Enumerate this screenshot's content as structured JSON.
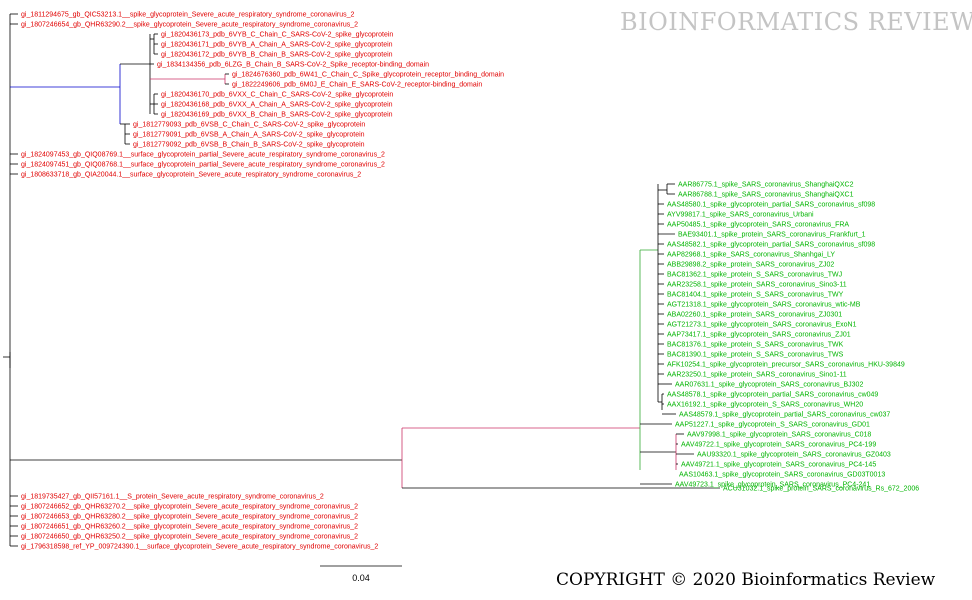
{
  "watermark": "BIOINFORMATICS REVIEW",
  "copyright": "COPYRIGHT © 2020 Bioinformatics Review",
  "scale_bar": {
    "label": "0.04",
    "value": 0.04
  },
  "colors": {
    "sars_cov_2": "#e00000",
    "sars": "#00b400",
    "outgroup": "#00b400",
    "branch_default": "#000000",
    "branch_blue": "#0000cc",
    "branch_pink": "#cc3366",
    "branch_green": "#33aa33"
  },
  "clades": {
    "sars_cov_2_top": [
      "gi_1811294675_gb_QIC53213.1__spike_glycoprotein_Severe_acute_respiratory_syndrome_coronavirus_2",
      "gi_1807246654_gb_QHR63290.2__spike_glycoprotein_Severe_acute_respiratory_syndrome_coronavirus_2",
      "gi_1820436173_pdb_6VYB_C_Chain_C_SARS-CoV-2_spike_glycoprotein",
      "gi_1820436171_pdb_6VYB_A_Chain_A_SARS-CoV-2_spike_glycoprotein",
      "gi_1820436172_pdb_6VYB_B_Chain_B_SARS-CoV-2_spike_glycoprotein",
      "gi_1834134356_pdb_6LZG_B_Chain_B_SARS-CoV-2_Spike_receptor-binding_domain",
      "gi_1824676360_pdb_6W41_C_Chain_C_Spike_glycoprotein_receptor_binding_domain",
      "gi_1822249606_pdb_6M0J_E_Chain_E_SARS-CoV-2_receptor-binding_domain",
      "gi_1820436170_pdb_6VXX_C_Chain_C_SARS-CoV-2_spike_glycoprotein",
      "gi_1820436168_pdb_6VXX_A_Chain_A_SARS-CoV-2_spike_glycoprotein",
      "gi_1820436169_pdb_6VXX_B_Chain_B_SARS-CoV-2_spike_glycoprotein",
      "gi_1812779093_pdb_6VSB_C_Chain_C_SARS-CoV-2_spike_glycoprotein",
      "gi_1812779091_pdb_6VSB_A_Chain_A_SARS-CoV-2_spike_glycoprotein",
      "gi_1812779092_pdb_6VSB_B_Chain_B_SARS-CoV-2_spike_glycoprotein",
      "gi_1824097453_gb_QIQ08769.1__surface_glycoprotein_partial_Severe_acute_respiratory_syndrome_coronavirus_2",
      "gi_1824097451_gb_QIQ08768.1__surface_glycoprotein_partial_Severe_acute_respiratory_syndrome_coronavirus_2",
      "gi_1808633718_gb_QIA20044.1__surface_glycoprotein_Severe_acute_respiratory_syndrome_coronavirus_2"
    ],
    "sars": [
      "AAR86775.1_spike_SARS_coronavirus_ShanghaiQXC2",
      "AAR86788.1_spike_SARS_coronavirus_ShanghaiQXC1",
      "AAS48580.1_spike_glycoprotein_partial_SARS_coronavirus_sf098",
      "AYV99817.1_spike_SARS_coronavirus_Urbani",
      "AAP50485.1_spike_glycoprotein_SARS_coronavirus_FRA",
      "BAE93401.1_spike_protein_SARS_coronavirus_Frankfurt_1",
      "AAS48582.1_spike_glycoprotein_partial_SARS_coronavirus_sf098",
      "AAP82968.1_spike_SARS_coronavirus_Shanhgai_LY",
      "ABB29898.2_spike_protein_SARS_coronavirus_ZJ02",
      "BAC81362.1_spike_protein_S_SARS_coronavirus_TWJ",
      "AAR23258.1_spike_protein_SARS_coronavirus_Sino3-11",
      "BAC81404.1_spike_protein_S_SARS_coronavirus_TWY",
      "AGT21318.1_spike_glycoprotein_SARS_coronavirus_wtic-MB",
      "ABA02260.1_spike_protein_SARS_coronavirus_ZJ0301",
      "AGT21273.1_spike_glycoprotein_SARS_coronavirus_ExoN1",
      "AAP73417.1_spike_glycoprotein_SARS_coronavirus_ZJ01",
      "BAC81376.1_spike_protein_S_SARS_coronavirus_TWK",
      "BAC81390.1_spike_protein_S_SARS_coronavirus_TWS",
      "AFK10254.1_spike_glycoprotein_precursor_SARS_coronavirus_HKU-39849",
      "AAR23250.1_spike_protein_SARS_coronavirus_Sino1-11",
      "AAR07631.1_spike_glycoprotein_SARS_coronavirus_BJ302",
      "AAS48578.1_spike_glycoprotein_partial_SARS_coronavirus_cw049",
      "AAX16192.1_spike_glycoprotein_S_SARS_coronavirus_WH20",
      "AAS48579.1_spike_glycoprotein_partial_SARS_coronavirus_cw037",
      "AAP51227.1_spike_glycoprotein_S_SARS_coronavirus_GD01",
      "AAV97998.1_spike_glycoprotein_SARS_coronavirus_C018",
      "AAV49722.1_spike_glycoprotein_SARS_coronavirus_PC4-199",
      "AAU93320.1_spike_glycoprotein_SARS_coronavirus_GZ0403",
      "AAV49721.1_spike_glycoprotein_SARS_coronavirus_PC4-145",
      "AAS10463.1_spike_glycoprotein_SARS_coronavirus_GD03T0013",
      "AAV49723.1_spike_glycoprotein_SARS_coronavirus_PC4-241"
    ],
    "outgroup": [
      "ACU31032.1_spike_protein_SARS_coronavirus_Rs_672_2006"
    ],
    "sars_cov_2_bottom": [
      "gi_1819735427_gb_QII57161.1__S_protein_Severe_acute_respiratory_syndrome_coronavirus_2",
      "gi_1807246652_gb_QHR63270.2__spike_glycoprotein_Severe_acute_respiratory_syndrome_coronavirus_2",
      "gi_1807246653_gb_QHR63280.2__spike_glycoprotein_Severe_acute_respiratory_syndrome_coronavirus_2",
      "gi_1807246651_gb_QHR63260.2__spike_glycoprotein_Severe_acute_respiratory_syndrome_coronavirus_2",
      "gi_1807246650_gb_QHR63250.2__spike_glycoprotein_Severe_acute_respiratory_syndrome_coronavirus_2",
      "gi_1796318598_ref_YP_009724390.1__surface_glycoprotein_Severe_acute_respiratory_syndrome_coronavirus_2"
    ]
  }
}
